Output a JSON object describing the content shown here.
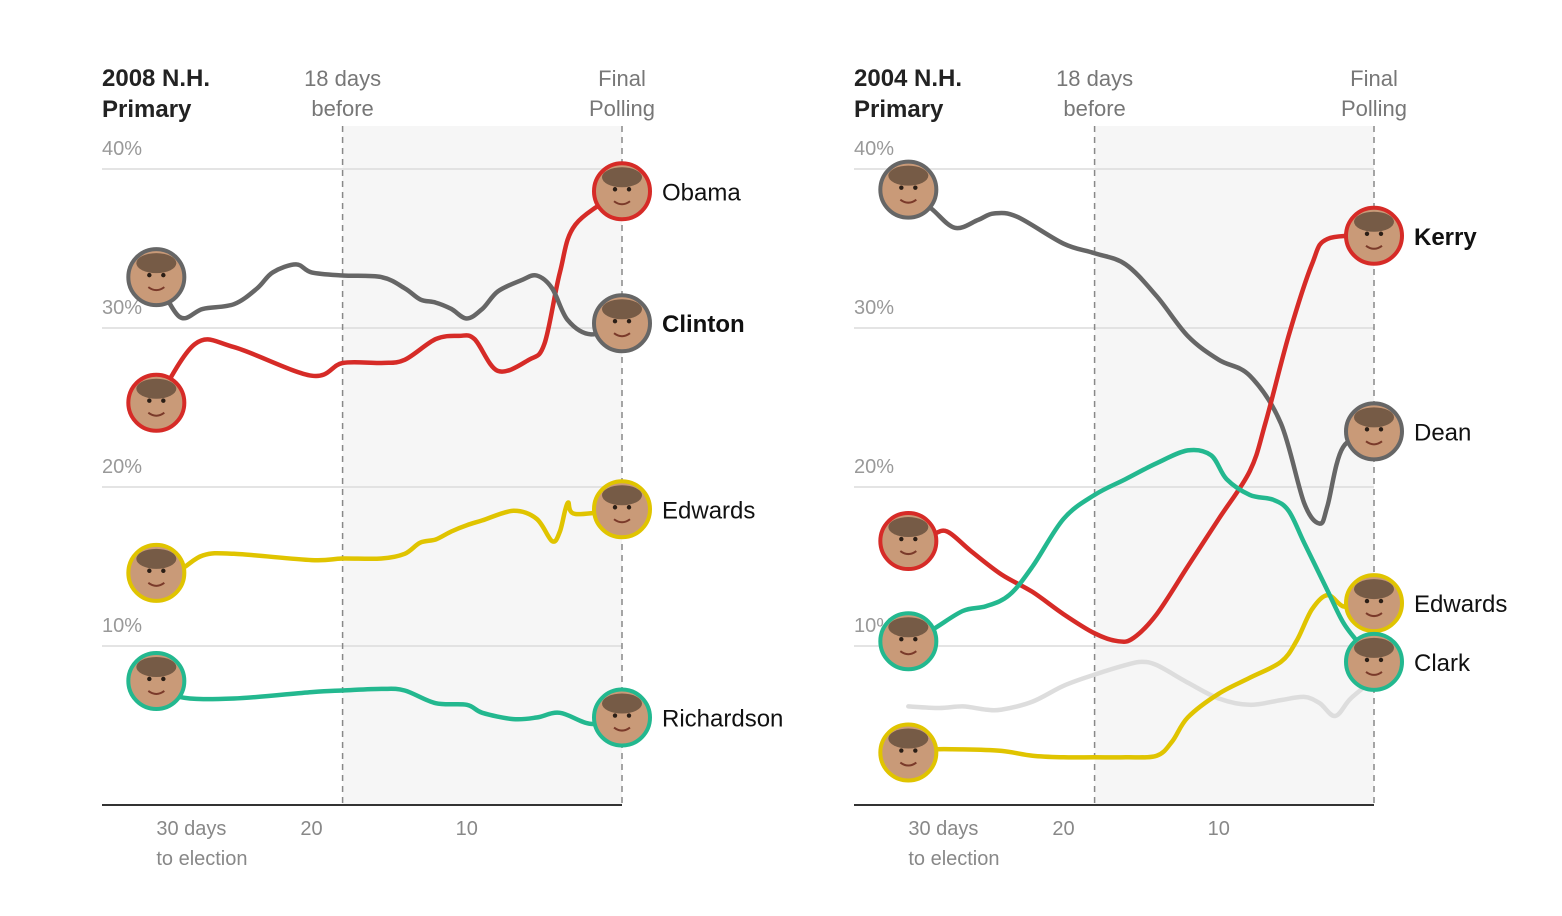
{
  "chart_data": [
    {
      "type": "line",
      "title": [
        "2008 N.H.",
        "Primary"
      ],
      "marker_label": [
        "18 days",
        "before"
      ],
      "final_label": [
        "Final",
        "Polling"
      ],
      "y_ticks": [
        "40%",
        "30%",
        "20%",
        "10%"
      ],
      "x_ticks": [
        {
          "x": 30,
          "label": [
            "30 days",
            "to election"
          ]
        },
        {
          "x": 20,
          "label": [
            "20"
          ]
        },
        {
          "x": 10,
          "label": [
            "10"
          ]
        }
      ],
      "xlim": [
        33.5,
        0
      ],
      "ylim": [
        0,
        40
      ],
      "marker_x": 18,
      "grid": true,
      "series": [
        {
          "name": "Obama",
          "color": "#d62b27",
          "bold": false,
          "x": [
            30,
            27.5,
            25,
            20,
            18,
            15.5,
            14,
            12,
            10.5,
            9.5,
            8,
            6,
            5,
            4,
            3,
            0
          ],
          "y": [
            25.3,
            29.0,
            28.8,
            27.0,
            27.8,
            27.8,
            28.0,
            29.3,
            29.5,
            29.3,
            27.3,
            28.0,
            29.0,
            33.5,
            36.5,
            38.6
          ]
        },
        {
          "name": "Clinton",
          "color": "#666666",
          "bold": true,
          "x": [
            30,
            28.5,
            27,
            25,
            23.5,
            22.5,
            21,
            20,
            18,
            15.5,
            14,
            13,
            12,
            11,
            10,
            9,
            8,
            6.5,
            5.5,
            4.5,
            3.5,
            2,
            0
          ],
          "y": [
            33.2,
            30.7,
            31.2,
            31.5,
            32.5,
            33.5,
            34.0,
            33.5,
            33.3,
            33.2,
            32.5,
            31.8,
            31.6,
            31.2,
            30.6,
            31.2,
            32.3,
            33.0,
            33.3,
            32.5,
            30.5,
            29.6,
            30.3
          ]
        },
        {
          "name": "Edwards",
          "color": "#e0c400",
          "bold": false,
          "x": [
            30,
            28.5,
            27,
            25,
            20,
            18,
            15.5,
            14,
            13,
            12,
            11,
            10,
            9,
            7,
            5.5,
            4.5,
            4,
            3.5,
            3,
            0
          ],
          "y": [
            14.6,
            14.8,
            15.7,
            15.8,
            15.4,
            15.5,
            15.5,
            15.8,
            16.5,
            16.7,
            17.2,
            17.6,
            17.9,
            18.5,
            18.0,
            16.6,
            17.2,
            19.0,
            18.3,
            18.6
          ]
        },
        {
          "name": "Richardson",
          "color": "#23b88f",
          "bold": false,
          "x": [
            30,
            28.5,
            25,
            20,
            18,
            15.5,
            14,
            12,
            10,
            9,
            7,
            5.5,
            4,
            2,
            0
          ],
          "y": [
            7.8,
            6.8,
            6.7,
            7.1,
            7.2,
            7.3,
            7.2,
            6.4,
            6.3,
            5.8,
            5.4,
            5.5,
            5.8,
            5.1,
            5.5
          ]
        }
      ]
    },
    {
      "type": "line",
      "title": [
        "2004 N.H.",
        "Primary"
      ],
      "marker_label": [
        "18 days",
        "before"
      ],
      "final_label": [
        "Final",
        "Polling"
      ],
      "y_ticks": [
        "40%",
        "30%",
        "20%",
        "10%"
      ],
      "x_ticks": [
        {
          "x": 30,
          "label": [
            "30 days",
            "to election"
          ]
        },
        {
          "x": 20,
          "label": [
            "20"
          ]
        },
        {
          "x": 10,
          "label": [
            "10"
          ]
        }
      ],
      "xlim": [
        33.5,
        0
      ],
      "ylim": [
        0,
        40
      ],
      "marker_x": 18,
      "grid": true,
      "series": [
        {
          "name": "Dean",
          "color": "#666666",
          "bold": false,
          "x": [
            30,
            28.5,
            27,
            25.5,
            24.5,
            23,
            20,
            18,
            16,
            14,
            12,
            10,
            8,
            6,
            4.5,
            3.5,
            3,
            2,
            0
          ],
          "y": [
            38.7,
            37.5,
            36.3,
            36.8,
            37.2,
            37.0,
            35.3,
            34.7,
            34.0,
            32.0,
            29.5,
            28.0,
            27.0,
            24.0,
            19.0,
            17.7,
            18.8,
            22.5,
            23.5
          ]
        },
        {
          "name": "Kerry",
          "color": "#d62b27",
          "bold": true,
          "x": [
            30,
            28.5,
            27.5,
            26,
            24,
            22,
            20,
            18,
            16.5,
            15.5,
            14,
            12,
            10,
            8,
            7,
            5.5,
            4,
            3,
            0
          ],
          "y": [
            16.6,
            17.0,
            17.2,
            16.0,
            14.5,
            13.4,
            12.0,
            10.8,
            10.3,
            10.5,
            12.0,
            15.0,
            18.0,
            21.0,
            24.0,
            29.5,
            34.0,
            35.6,
            35.8
          ]
        },
        {
          "name": "Edwards",
          "color": "#e0c400",
          "bold": false,
          "x": [
            30,
            28.5,
            26.5,
            24,
            22,
            20,
            18,
            16,
            14,
            13,
            12,
            10,
            8,
            6,
            5,
            4,
            3,
            2,
            1,
            0
          ],
          "y": [
            3.3,
            3.5,
            3.5,
            3.4,
            3.1,
            3.0,
            3.0,
            3.0,
            3.1,
            4.0,
            5.5,
            7.0,
            8.0,
            9.0,
            10.3,
            12.3,
            13.2,
            12.5,
            12.6,
            12.7
          ]
        },
        {
          "name": "Clark",
          "color": "#23b88f",
          "bold": false,
          "x": [
            30,
            28.5,
            26.5,
            25,
            23.5,
            22,
            20,
            18,
            16,
            14,
            12,
            10.5,
            9.5,
            8,
            6.5,
            5.5,
            4.5,
            3,
            2,
            1,
            0
          ],
          "y": [
            10.3,
            11.0,
            12.2,
            12.5,
            13.2,
            15.0,
            18.0,
            19.5,
            20.5,
            21.5,
            22.3,
            22.0,
            20.5,
            19.5,
            19.2,
            18.5,
            16.5,
            13.5,
            11.5,
            10.2,
            9.0
          ]
        },
        {
          "name": "",
          "color": "#dddddd",
          "bold": false,
          "x": [
            30,
            28,
            26.5,
            25,
            24,
            22,
            20,
            18,
            16,
            15,
            14,
            12,
            10,
            8,
            6,
            4.5,
            3.5,
            2.5,
            1.5,
            0
          ],
          "y": [
            6.2,
            6.1,
            6.2,
            6.0,
            6.0,
            6.5,
            7.5,
            8.2,
            8.8,
            9.0,
            8.8,
            7.7,
            6.7,
            6.3,
            6.6,
            6.8,
            6.4,
            5.6,
            6.7,
            7.9
          ]
        }
      ]
    }
  ],
  "labels": [
    {
      "panel": 0,
      "text": "Obama",
      "bold": false
    },
    {
      "panel": 0,
      "text": "Clinton",
      "bold": true
    },
    {
      "panel": 0,
      "text": "Edwards",
      "bold": false
    },
    {
      "panel": 0,
      "text": "Richardson",
      "bold": false
    },
    {
      "panel": 1,
      "text": "Kerry",
      "bold": true
    },
    {
      "panel": 1,
      "text": "Dean",
      "bold": false
    },
    {
      "panel": 1,
      "text": "Edwards",
      "bold": false
    },
    {
      "panel": 1,
      "text": "Clark",
      "bold": false
    }
  ]
}
